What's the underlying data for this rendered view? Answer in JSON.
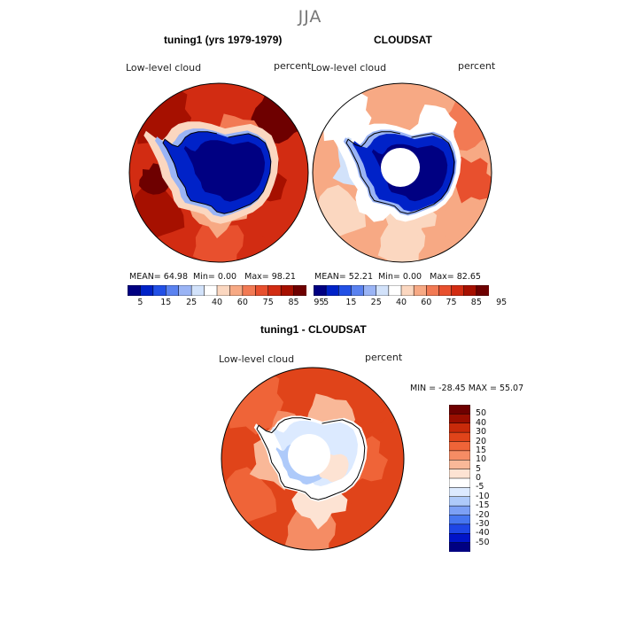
{
  "season": "JJA",
  "colors": {
    "abs": [
      "#000082",
      "#0022c8",
      "#2250e6",
      "#5a82f0",
      "#9ab4f5",
      "#d2e2fa",
      "#ffffff",
      "#fbd7c0",
      "#f7a984",
      "#f27a54",
      "#e8502e",
      "#d22c12",
      "#a61000",
      "#6e0000"
    ],
    "diff": [
      "#000082",
      "#0014c8",
      "#1e46e6",
      "#4676f0",
      "#7ca0f5",
      "#aecafa",
      "#dceaff",
      "#ffffff",
      "#fde3d3",
      "#f9b898",
      "#f58c64",
      "#ef6438",
      "#e0441a",
      "#c82a0a",
      "#9a0e00",
      "#6e0000"
    ]
  },
  "panels": [
    {
      "title": "tuning1 (yrs 1979-1979)",
      "variable": "Low-level cloud",
      "units": "percent",
      "stats": {
        "mean_label": "MEAN=",
        "mean": "64.98",
        "min_label": "Min=",
        "min": "0.00",
        "max_label": "Max=",
        "max": "98.21"
      }
    },
    {
      "title": "CLOUDSAT",
      "variable": "Low-level cloud",
      "units": "percent",
      "stats": {
        "mean_label": "MEAN=",
        "mean": "52.21",
        "min_label": "Min=",
        "min": "0.00",
        "max_label": "Max=",
        "max": "82.65"
      }
    },
    {
      "title": "tuning1 - CLOUDSAT",
      "variable": "Low-level cloud",
      "units": "percent",
      "stats": {
        "text": "MIN = -28.45  MAX =  55.07"
      }
    }
  ],
  "colorbar_abs_labels": [
    "5",
    "15",
    "25",
    "40",
    "60",
    "75",
    "85",
    "95"
  ],
  "colorbar_diff_labels": [
    "50",
    "40",
    "30",
    "20",
    "15",
    "10",
    "5",
    "0",
    "-5",
    "-10",
    "-15",
    "-20",
    "-30",
    "-40",
    "-50"
  ]
}
